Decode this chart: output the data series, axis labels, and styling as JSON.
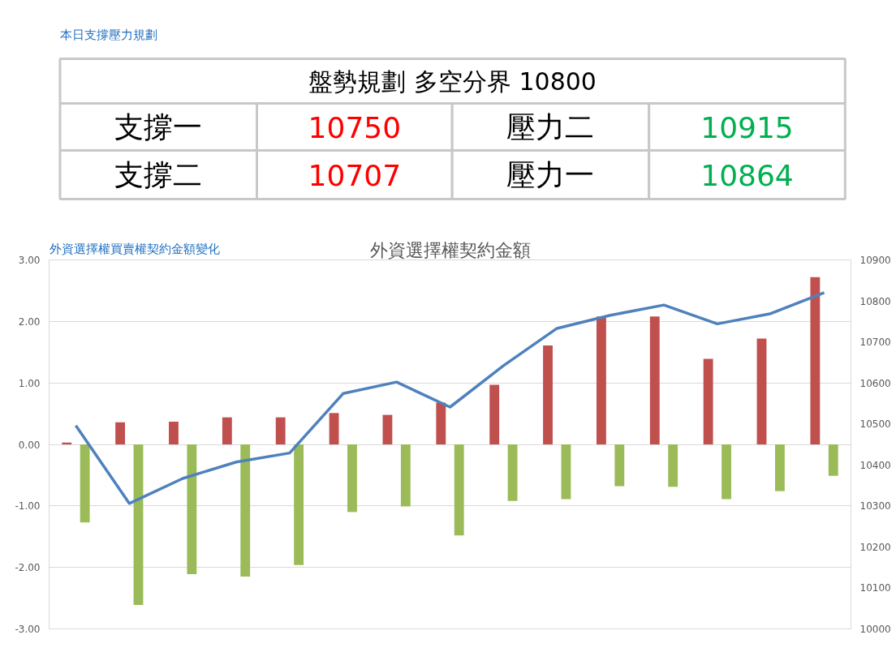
{
  "chart_data": [
    {
      "type": "other",
      "title": "本日支撐壓力規劃",
      "annotations": [
        "盤勢規劃 多空分界 10800",
        "支撐一",
        "10750",
        "壓力二",
        "10915",
        "支撐二",
        "10707",
        "壓力一",
        "10864"
      ],
      "colors": [
        "#000000",
        "#000000",
        "#ff0000",
        "#000000",
        "#00b050",
        "#000000",
        "#ff0000",
        "#000000",
        "#00b050"
      ]
    },
    {
      "type": "bar",
      "title": "外資選擇權買賣權契約金額變化",
      "subtitle": "外資選擇權契約金額",
      "categories": [
        null,
        null,
        null,
        null,
        null,
        null,
        null,
        null,
        null,
        null,
        null,
        null,
        null,
        null,
        null
      ],
      "series": [
        {
          "color": "#c0504d",
          "values": [
            0.03,
            0.36,
            0.37,
            0.44,
            0.44,
            0.51,
            0.48,
            0.68,
            0.97,
            1.61,
            2.08,
            2.08,
            1.39,
            1.72,
            2.72
          ]
        },
        {
          "color": "#9bbb59",
          "values": [
            -1.27,
            -2.61,
            -2.11,
            -2.15,
            -1.96,
            -1.1,
            -1.01,
            -1.48,
            -0.92,
            -0.89,
            -0.68,
            -0.69,
            -0.89,
            -0.76,
            -0.51
          ]
        },
        {
          "type": "line",
          "axis": "y2",
          "color": "#4f81bd",
          "values": [
            10496,
            10306,
            10367,
            10407,
            10429,
            10574,
            10602,
            10541,
            10642,
            10733,
            10765,
            10790,
            10744,
            10769,
            10820
          ]
        }
      ],
      "ylim": [
        -3,
        3
      ],
      "yticks": [
        {
          "value": -3,
          "label": "-3.00"
        },
        {
          "value": -2,
          "label": "-2.00"
        },
        {
          "value": -1,
          "label": "-1.00"
        },
        {
          "value": 0,
          "label": "0.00"
        },
        {
          "value": 1,
          "label": "1.00"
        },
        {
          "value": 2,
          "label": "2.00"
        },
        {
          "value": 3,
          "label": "3.00"
        }
      ],
      "y2lim": [
        10000,
        10900
      ],
      "y2ticks": [
        10000,
        10100,
        10200,
        10300,
        10400,
        10500,
        10600,
        10700,
        10800,
        10900
      ],
      "grid": "y"
    }
  ]
}
